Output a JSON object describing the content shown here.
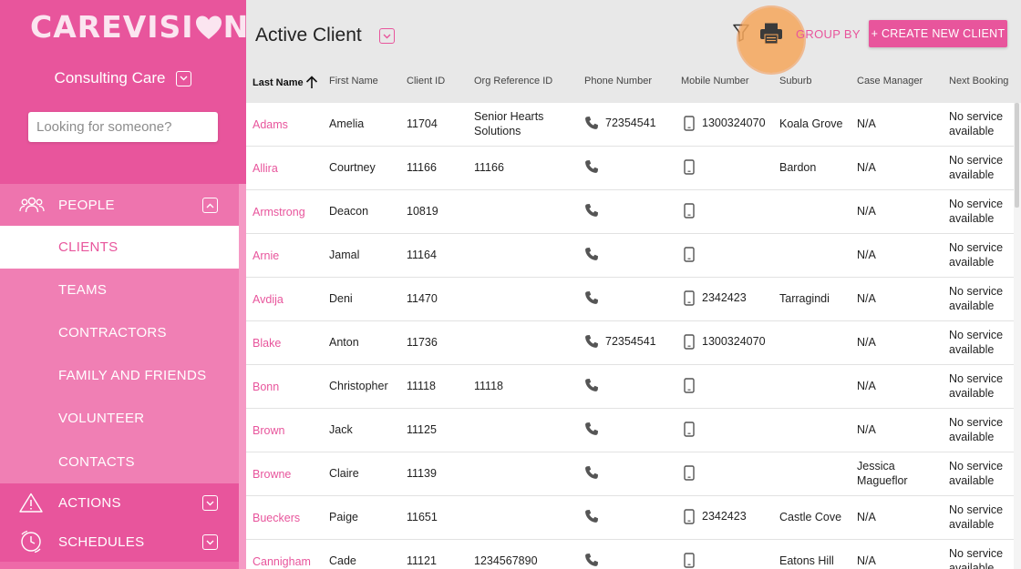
{
  "app": {
    "logo_left": "CAREVISI",
    "logo_right": "N",
    "org_name": "Consulting Care",
    "brand_color": "#e8559c"
  },
  "search": {
    "placeholder": "Looking for someone?"
  },
  "sidebar": {
    "people": {
      "label": "PEOPLE",
      "icon": "people-icon"
    },
    "subitems": [
      {
        "label": "CLIENTS",
        "active": true
      },
      {
        "label": "TEAMS"
      },
      {
        "label": "CONTRACTORS"
      },
      {
        "label": "FAMILY AND FRIENDS"
      },
      {
        "label": "VOLUNTEER"
      },
      {
        "label": "CONTACTS"
      }
    ],
    "actions": {
      "label": "ACTIONS",
      "icon": "warning-icon"
    },
    "schedules": {
      "label": "SCHEDULES",
      "icon": "clock-icon"
    }
  },
  "header": {
    "title": "Active Client",
    "group_by": "GROUP BY",
    "create_label": "+ CREATE NEW CLIENT"
  },
  "columns": [
    "Last Name",
    "First Name",
    "Client ID",
    "Org Reference ID",
    "Phone Number",
    "Mobile Number",
    "Suburb",
    "Case Manager",
    "Next Booking"
  ],
  "rows": [
    {
      "last": "Adams",
      "first": "Amelia",
      "id": "11704",
      "org_ref": "Senior Hearts Solutions",
      "phone": "72354541",
      "mobile": "1300324070",
      "suburb": "Koala Grove",
      "case_manager": "N/A",
      "next_booking": "No service available"
    },
    {
      "last": "Allira",
      "first": "Courtney",
      "id": "11166",
      "org_ref": "11166",
      "phone": "",
      "mobile": "",
      "suburb": "Bardon",
      "case_manager": "N/A",
      "next_booking": "No service available"
    },
    {
      "last": "Armstrong",
      "first": "Deacon",
      "id": "10819",
      "org_ref": "",
      "phone": "",
      "mobile": "",
      "suburb": "",
      "case_manager": "N/A",
      "next_booking": "No service available"
    },
    {
      "last": "Arnie",
      "first": "Jamal",
      "id": "11164",
      "org_ref": "",
      "phone": "",
      "mobile": "",
      "suburb": "",
      "case_manager": "N/A",
      "next_booking": "No service available"
    },
    {
      "last": "Avdija",
      "first": "Deni",
      "id": "11470",
      "org_ref": "",
      "phone": "",
      "mobile": "2342423",
      "suburb": "Tarragindi",
      "case_manager": "N/A",
      "next_booking": "No service available"
    },
    {
      "last": "Blake",
      "first": "Anton",
      "id": "11736",
      "org_ref": "",
      "phone": "72354541",
      "mobile": "1300324070",
      "suburb": "",
      "case_manager": "N/A",
      "next_booking": "No service available"
    },
    {
      "last": "Bonn",
      "first": "Christopher",
      "id": "11118",
      "org_ref": "11118",
      "phone": "",
      "mobile": "",
      "suburb": "",
      "case_manager": "N/A",
      "next_booking": "No service available"
    },
    {
      "last": "Brown",
      "first": "Jack",
      "id": "11125",
      "org_ref": "",
      "phone": "",
      "mobile": "",
      "suburb": "",
      "case_manager": "N/A",
      "next_booking": "No service available"
    },
    {
      "last": "Browne",
      "first": "Claire",
      "id": "11139",
      "org_ref": "",
      "phone": "",
      "mobile": "",
      "suburb": "",
      "case_manager": "Jessica Magueflor",
      "next_booking": "No service available"
    },
    {
      "last": "Bueckers",
      "first": "Paige",
      "id": "11651",
      "org_ref": "",
      "phone": "",
      "mobile": "2342423",
      "suburb": "Castle Cove",
      "case_manager": "N/A",
      "next_booking": "No service available"
    },
    {
      "last": "Cannigham",
      "first": "Cade",
      "id": "11121",
      "org_ref": "1234567890",
      "phone": "",
      "mobile": "",
      "suburb": "Eatons Hill",
      "case_manager": "N/A",
      "next_booking": "No service available"
    }
  ]
}
